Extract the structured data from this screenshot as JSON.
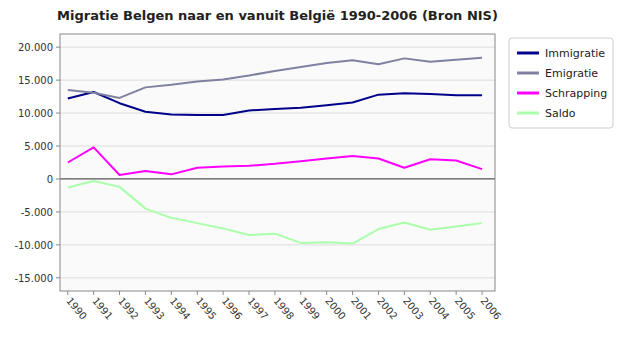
{
  "chart_data": {
    "type": "line",
    "title": "Migratie Belgen naar en vanuit België 1990-2006 (Bron NIS)",
    "x": [
      1990,
      1991,
      1992,
      1993,
      1994,
      1995,
      1996,
      1997,
      1998,
      1999,
      2000,
      2001,
      2002,
      2003,
      2004,
      2005,
      2006
    ],
    "xlim": [
      1989.7,
      2006.5
    ],
    "xticks": [
      1990,
      1991,
      1992,
      1993,
      1994,
      1995,
      1996,
      1997,
      1998,
      1999,
      2000,
      2001,
      2002,
      2003,
      2004,
      2005,
      2006
    ],
    "ylim": [
      -17000,
      22000
    ],
    "yticks": [
      {
        "value": -15000,
        "label": "-15.000"
      },
      {
        "value": -10000,
        "label": "-10.000"
      },
      {
        "value": -5000,
        "label": "-5.000"
      },
      0,
      {
        "value": 5000,
        "label": "5.000"
      },
      {
        "value": 10000,
        "label": "10.000"
      },
      {
        "value": 15000,
        "label": "15.000"
      },
      {
        "value": 20000,
        "label": "20.000"
      }
    ],
    "grid": "y",
    "legend": "right",
    "series": [
      {
        "name": "Immigratie",
        "color": "#00008B",
        "values": [
          12200,
          13200,
          11500,
          10200,
          9800,
          9700,
          9700,
          10400,
          10600,
          10800,
          11200,
          11600,
          12800,
          13000,
          12900,
          12700,
          12700
        ]
      },
      {
        "name": "Emigratie",
        "color": "#8080A0",
        "values": [
          13500,
          13100,
          12300,
          13900,
          14300,
          14800,
          15100,
          15700,
          16400,
          17000,
          17600,
          18000,
          17400,
          18300,
          17800,
          18100,
          18400
        ]
      },
      {
        "name": "Schrapping",
        "color": "#FF00FF",
        "values": [
          2500,
          4800,
          600,
          1200,
          700,
          1700,
          1900,
          2000,
          2300,
          2700,
          3100,
          3500,
          3100,
          1700,
          3000,
          2800,
          1500
        ]
      },
      {
        "name": "Saldo",
        "color": "#AAFFAA",
        "values": [
          -1300,
          -300,
          -1200,
          -4500,
          -5900,
          -6700,
          -7500,
          -8500,
          -8300,
          -9700,
          -9600,
          -9800,
          -7600,
          -6600,
          -7700,
          -7200,
          -6700
        ]
      }
    ]
  }
}
